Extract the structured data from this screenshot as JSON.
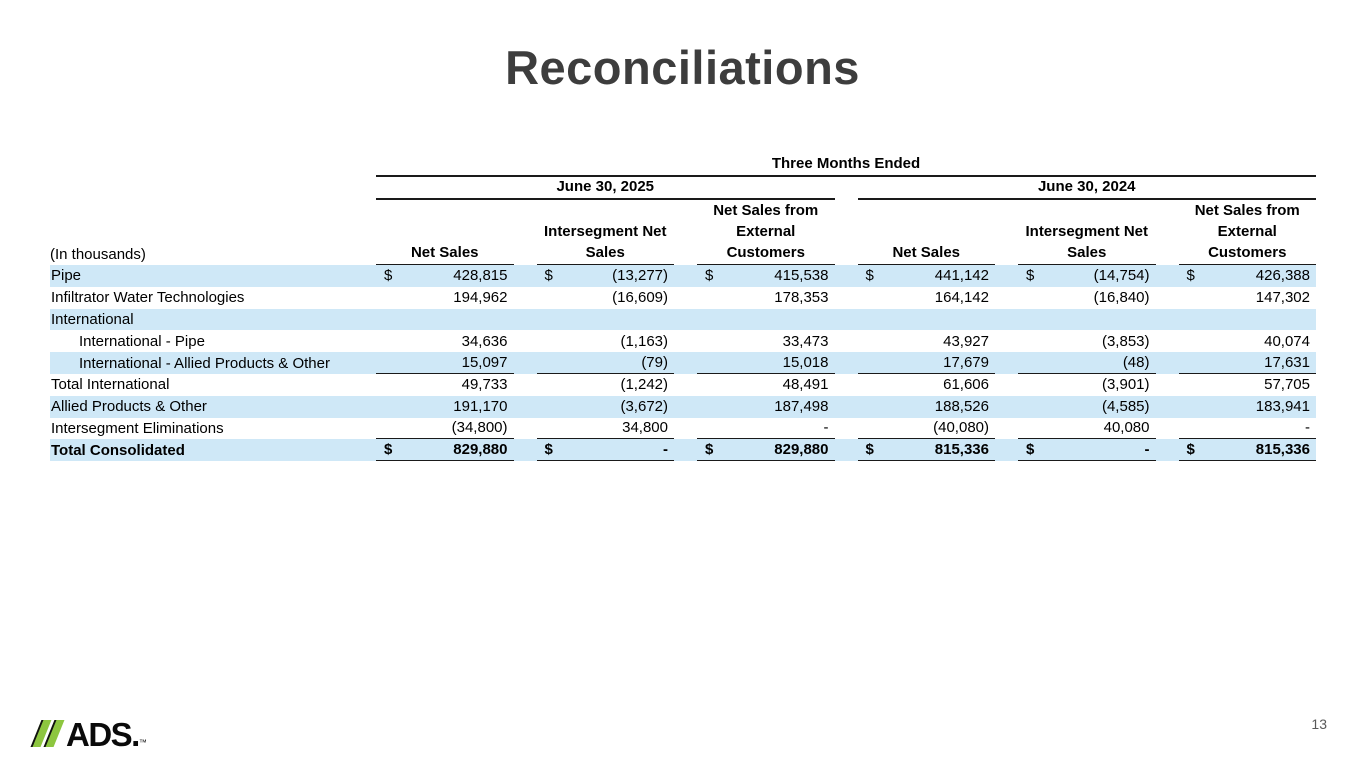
{
  "slide": {
    "title": "Reconciliations",
    "page_number": "13",
    "logo": {
      "text": "ADS.",
      "trademark": "™"
    }
  },
  "table": {
    "currency_symbol": "$",
    "units_label": "(In thousands)",
    "span_header": "Three Months Ended",
    "period_headers": {
      "p2025": "June 30, 2025",
      "p2024": "June 30, 2024"
    },
    "column_headers": [
      "Net Sales",
      "Intersegment Net\nSales",
      "Net Sales from\nExternal\nCustomers",
      "Net Sales",
      "Intersegment Net\nSales",
      "Net Sales from\nExternal\nCustomers"
    ],
    "rows": [
      {
        "label": "Pipe",
        "indent": false,
        "bold": false,
        "shaded": true,
        "dollar": true,
        "underline": false,
        "values": [
          "428,815",
          "(13,277)",
          "415,538",
          "441,142",
          "(14,754)",
          "426,388"
        ]
      },
      {
        "label": "Infiltrator Water Technologies",
        "indent": false,
        "bold": false,
        "shaded": false,
        "dollar": false,
        "underline": false,
        "values": [
          "194,962",
          "(16,609)",
          "178,353",
          "164,142",
          "(16,840)",
          "147,302"
        ]
      },
      {
        "label": "International",
        "indent": false,
        "bold": false,
        "shaded": true,
        "dollar": false,
        "underline": false,
        "values": [
          "",
          "",
          "",
          "",
          "",
          ""
        ]
      },
      {
        "label": "International - Pipe",
        "indent": true,
        "bold": false,
        "shaded": false,
        "dollar": false,
        "underline": false,
        "values": [
          "34,636",
          "(1,163)",
          "33,473",
          "43,927",
          "(3,853)",
          "40,074"
        ]
      },
      {
        "label": "International - Allied Products & Other",
        "indent": true,
        "bold": false,
        "shaded": true,
        "dollar": false,
        "underline": true,
        "values": [
          "15,097",
          "(79)",
          "15,018",
          "17,679",
          "(48)",
          "17,631"
        ]
      },
      {
        "label": "Total International",
        "indent": false,
        "bold": false,
        "shaded": false,
        "dollar": false,
        "underline": false,
        "values": [
          "49,733",
          "(1,242)",
          "48,491",
          "61,606",
          "(3,901)",
          "57,705"
        ]
      },
      {
        "label": "Allied Products & Other",
        "indent": false,
        "bold": false,
        "shaded": true,
        "dollar": false,
        "underline": false,
        "values": [
          "191,170",
          "(3,672)",
          "187,498",
          "188,526",
          "(4,585)",
          "183,941"
        ]
      },
      {
        "label": "Intersegment Eliminations",
        "indent": false,
        "bold": false,
        "shaded": false,
        "dollar": false,
        "underline": true,
        "values": [
          "(34,800)",
          "34,800",
          "-",
          "(40,080)",
          "40,080",
          "-"
        ]
      },
      {
        "label": "Total Consolidated",
        "indent": false,
        "bold": true,
        "shaded": true,
        "dollar": true,
        "underline": true,
        "values": [
          "829,880",
          "-",
          "829,880",
          "815,336",
          "-",
          "815,336"
        ]
      }
    ],
    "colors": {
      "row_shade": "#cfe8f7",
      "logo_green": "#8dc63f"
    }
  }
}
